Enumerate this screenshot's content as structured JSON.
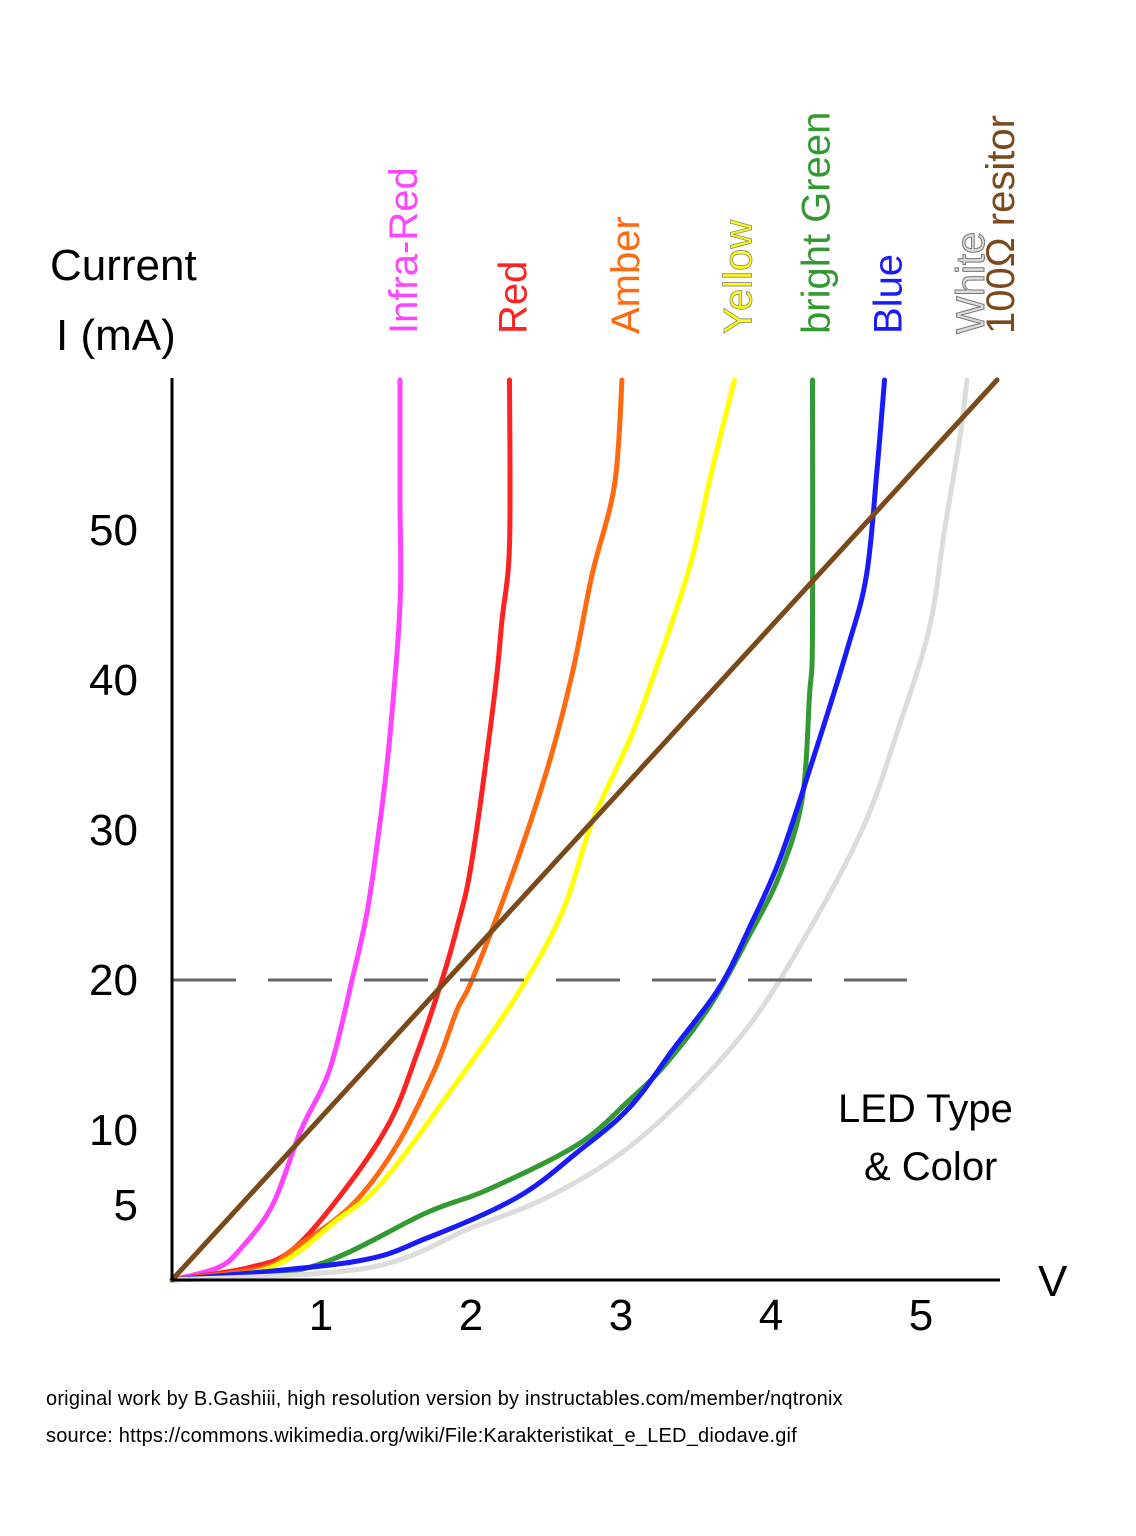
{
  "chart_data": {
    "type": "line",
    "ylabel_line1": "Current",
    "ylabel_line2": "I (mA)",
    "xlabel": "V",
    "xlim": [
      0,
      5.5
    ],
    "ylim": [
      0,
      60
    ],
    "xticks": [
      {
        "value": 1,
        "label": "1"
      },
      {
        "value": 2,
        "label": "2"
      },
      {
        "value": 3,
        "label": "3"
      },
      {
        "value": 4,
        "label": "4"
      },
      {
        "value": 5,
        "label": "5"
      }
    ],
    "yticks": [
      {
        "value": 5,
        "label": "5"
      },
      {
        "value": 10,
        "label": "10"
      },
      {
        "value": 20,
        "label": "20"
      },
      {
        "value": 30,
        "label": "30"
      },
      {
        "value": 40,
        "label": "40"
      },
      {
        "value": 50,
        "label": "50"
      }
    ],
    "reference_line": {
      "y": 20,
      "x_end": 4.9,
      "style": "dashed",
      "color": "#666666"
    },
    "annotation_line1": "LED Type",
    "annotation_line2": "& Color",
    "series": [
      {
        "name": "Infra-Red",
        "color": "#ff44ff",
        "points": [
          [
            0,
            0
          ],
          [
            0.3,
            0.8
          ],
          [
            0.45,
            2
          ],
          [
            0.67,
            5
          ],
          [
            0.86,
            10
          ],
          [
            1.05,
            14
          ],
          [
            1.2,
            20
          ],
          [
            1.3,
            24.5
          ],
          [
            1.38,
            30
          ],
          [
            1.45,
            36
          ],
          [
            1.52,
            45
          ],
          [
            1.52,
            52
          ],
          [
            1.52,
            60
          ]
        ]
      },
      {
        "name": "Red",
        "color": "#ff2222",
        "points": [
          [
            0,
            0
          ],
          [
            0.5,
            0.8
          ],
          [
            0.8,
            2
          ],
          [
            1.15,
            6
          ],
          [
            1.45,
            10.5
          ],
          [
            1.63,
            15
          ],
          [
            1.8,
            20
          ],
          [
            1.9,
            23.5
          ],
          [
            2.0,
            28
          ],
          [
            2.15,
            39
          ],
          [
            2.2,
            44
          ],
          [
            2.25,
            49
          ],
          [
            2.25,
            60
          ]
        ]
      },
      {
        "name": "Amber",
        "color": "#ff6a10",
        "points": [
          [
            0,
            0
          ],
          [
            0.6,
            0.8
          ],
          [
            0.8,
            2
          ],
          [
            1.2,
            5
          ],
          [
            1.5,
            9
          ],
          [
            1.75,
            14
          ],
          [
            1.9,
            18
          ],
          [
            2.0,
            20
          ],
          [
            2.25,
            26.5
          ],
          [
            2.5,
            34
          ],
          [
            2.67,
            40.5
          ],
          [
            2.8,
            47
          ],
          [
            2.95,
            53
          ],
          [
            3.0,
            60
          ]
        ]
      },
      {
        "name": "Yellow",
        "color": "#ffff00",
        "points": [
          [
            0,
            0
          ],
          [
            0.65,
            0.8
          ],
          [
            1.1,
            4
          ],
          [
            1.4,
            6.5
          ],
          [
            1.85,
            12.5
          ],
          [
            2.3,
            19
          ],
          [
            2.6,
            24.5
          ],
          [
            2.8,
            30.5
          ],
          [
            3.05,
            36
          ],
          [
            3.2,
            40
          ],
          [
            3.45,
            47.5
          ],
          [
            3.6,
            54
          ],
          [
            3.75,
            60
          ]
        ]
      },
      {
        "name": "bright Green",
        "color": "#339933",
        "points": [
          [
            0,
            0
          ],
          [
            0.9,
            0.8
          ],
          [
            1.7,
            4.5
          ],
          [
            2.1,
            6
          ],
          [
            2.7,
            9
          ],
          [
            3.05,
            12
          ],
          [
            3.3,
            14.5
          ],
          [
            3.6,
            18.5
          ],
          [
            3.85,
            23
          ],
          [
            4.05,
            27
          ],
          [
            4.2,
            32
          ],
          [
            4.25,
            39
          ],
          [
            4.27,
            43
          ],
          [
            4.27,
            60
          ]
        ]
      },
      {
        "name": "Blue",
        "color": "#1a1aff",
        "points": [
          [
            0,
            0
          ],
          [
            1.2,
            1.2
          ],
          [
            1.7,
            2.8
          ],
          [
            2.3,
            5.5
          ],
          [
            2.7,
            8.5
          ],
          [
            3.05,
            11.5
          ],
          [
            3.35,
            15.5
          ],
          [
            3.65,
            19.5
          ],
          [
            3.85,
            23.5
          ],
          [
            4.05,
            28
          ],
          [
            4.25,
            34
          ],
          [
            4.5,
            42
          ],
          [
            4.63,
            47
          ],
          [
            4.7,
            54
          ],
          [
            4.75,
            60
          ]
        ]
      },
      {
        "name": "White",
        "color": "#dcdcdc",
        "points": [
          [
            0,
            0
          ],
          [
            1.3,
            0.8
          ],
          [
            2.0,
            3.5
          ],
          [
            2.5,
            5.5
          ],
          [
            3.0,
            8.5
          ],
          [
            3.45,
            12.5
          ],
          [
            3.85,
            17
          ],
          [
            4.2,
            22.5
          ],
          [
            4.6,
            30
          ],
          [
            4.85,
            37
          ],
          [
            5.05,
            43.5
          ],
          [
            5.15,
            50
          ],
          [
            5.25,
            56
          ],
          [
            5.3,
            60
          ]
        ]
      },
      {
        "name": "100Ω resitor",
        "color": "#7a4a1a",
        "points": [
          [
            0,
            0
          ],
          [
            5.5,
            60
          ]
        ]
      }
    ]
  },
  "credits": {
    "line1": "original work by B.Gashiii, high resolution version by instructables.com/member/nqtronix",
    "line2": "source: https://commons.wikimedia.org/wiki/File:Karakteristikat_e_LED_diodave.gif"
  }
}
